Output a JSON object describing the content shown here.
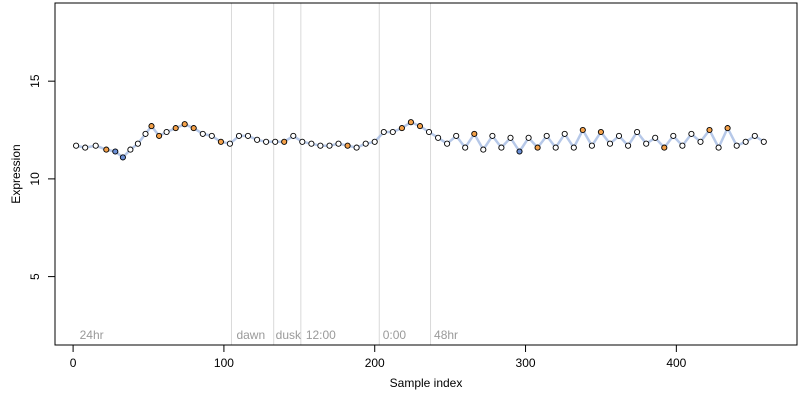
{
  "chart_data": {
    "type": "scatter",
    "title": "",
    "xlabel": "Sample index",
    "ylabel": "Expression",
    "xlim": [
      -12,
      480
    ],
    "ylim": [
      1.5,
      19.0
    ],
    "x_ticks": [
      0,
      100,
      200,
      300,
      400
    ],
    "y_ticks": [
      5,
      10,
      15
    ],
    "grid": false,
    "region_boundaries": [
      105,
      133,
      151,
      203,
      237
    ],
    "region_labels": [
      {
        "text": "24hr",
        "x": 3
      },
      {
        "text": "dawn",
        "x": 107
      },
      {
        "text": "dusk",
        "x": 133
      },
      {
        "text": "12:00",
        "x": 153
      },
      {
        "text": "0:00",
        "x": 204
      },
      {
        "text": "48hr",
        "x": 238
      }
    ],
    "point_colors": {
      "default": "#ffffff",
      "warm": "#f4a14a",
      "cool": "#6a8fd6",
      "line": "#9db6e0",
      "boundary": "#d9d9d9"
    },
    "series": [
      {
        "values": [
          {
            "x": 2,
            "y": 11.7
          },
          {
            "x": 8,
            "y": 11.6
          },
          {
            "x": 15,
            "y": 11.7
          },
          {
            "x": 22,
            "y": 11.5
          },
          {
            "x": 28,
            "y": 11.4
          },
          {
            "x": 33,
            "y": 11.1
          },
          {
            "x": 38,
            "y": 11.5
          },
          {
            "x": 43,
            "y": 11.8
          },
          {
            "x": 48,
            "y": 12.3
          },
          {
            "x": 52,
            "y": 12.7
          },
          {
            "x": 57,
            "y": 12.2
          },
          {
            "x": 62,
            "y": 12.4
          },
          {
            "x": 68,
            "y": 12.6
          },
          {
            "x": 74,
            "y": 12.8
          },
          {
            "x": 80,
            "y": 12.6
          },
          {
            "x": 86,
            "y": 12.3
          },
          {
            "x": 92,
            "y": 12.2
          },
          {
            "x": 98,
            "y": 11.9
          },
          {
            "x": 104,
            "y": 11.8
          },
          {
            "x": 110,
            "y": 12.2
          },
          {
            "x": 116,
            "y": 12.2
          },
          {
            "x": 122,
            "y": 12.0
          },
          {
            "x": 128,
            "y": 11.9
          },
          {
            "x": 134,
            "y": 11.9
          },
          {
            "x": 140,
            "y": 11.9
          },
          {
            "x": 146,
            "y": 12.2
          },
          {
            "x": 152,
            "y": 11.9
          },
          {
            "x": 158,
            "y": 11.8
          },
          {
            "x": 164,
            "y": 11.7
          },
          {
            "x": 170,
            "y": 11.7
          },
          {
            "x": 176,
            "y": 11.8
          },
          {
            "x": 182,
            "y": 11.7
          },
          {
            "x": 188,
            "y": 11.6
          },
          {
            "x": 194,
            "y": 11.8
          },
          {
            "x": 200,
            "y": 11.9
          },
          {
            "x": 206,
            "y": 12.4
          },
          {
            "x": 212,
            "y": 12.4
          },
          {
            "x": 218,
            "y": 12.6
          },
          {
            "x": 224,
            "y": 12.9
          },
          {
            "x": 230,
            "y": 12.7
          },
          {
            "x": 236,
            "y": 12.4
          },
          {
            "x": 242,
            "y": 12.1
          },
          {
            "x": 248,
            "y": 11.8
          },
          {
            "x": 254,
            "y": 12.2
          },
          {
            "x": 260,
            "y": 11.6
          },
          {
            "x": 266,
            "y": 12.3
          },
          {
            "x": 272,
            "y": 11.5
          },
          {
            "x": 278,
            "y": 12.2
          },
          {
            "x": 284,
            "y": 11.6
          },
          {
            "x": 290,
            "y": 12.1
          },
          {
            "x": 296,
            "y": 11.4
          },
          {
            "x": 302,
            "y": 12.1
          },
          {
            "x": 308,
            "y": 11.6
          },
          {
            "x": 314,
            "y": 12.2
          },
          {
            "x": 320,
            "y": 11.6
          },
          {
            "x": 326,
            "y": 12.3
          },
          {
            "x": 332,
            "y": 11.6
          },
          {
            "x": 338,
            "y": 12.5
          },
          {
            "x": 344,
            "y": 11.7
          },
          {
            "x": 350,
            "y": 12.4
          },
          {
            "x": 356,
            "y": 11.8
          },
          {
            "x": 362,
            "y": 12.2
          },
          {
            "x": 368,
            "y": 11.7
          },
          {
            "x": 374,
            "y": 12.4
          },
          {
            "x": 380,
            "y": 11.8
          },
          {
            "x": 386,
            "y": 12.1
          },
          {
            "x": 392,
            "y": 11.6
          },
          {
            "x": 398,
            "y": 12.2
          },
          {
            "x": 404,
            "y": 11.7
          },
          {
            "x": 410,
            "y": 12.3
          },
          {
            "x": 416,
            "y": 11.9
          },
          {
            "x": 422,
            "y": 12.5
          },
          {
            "x": 428,
            "y": 11.6
          },
          {
            "x": 434,
            "y": 12.6
          },
          {
            "x": 440,
            "y": 11.7
          },
          {
            "x": 446,
            "y": 11.9
          },
          {
            "x": 452,
            "y": 12.2
          },
          {
            "x": 458,
            "y": 11.9
          }
        ]
      }
    ]
  }
}
